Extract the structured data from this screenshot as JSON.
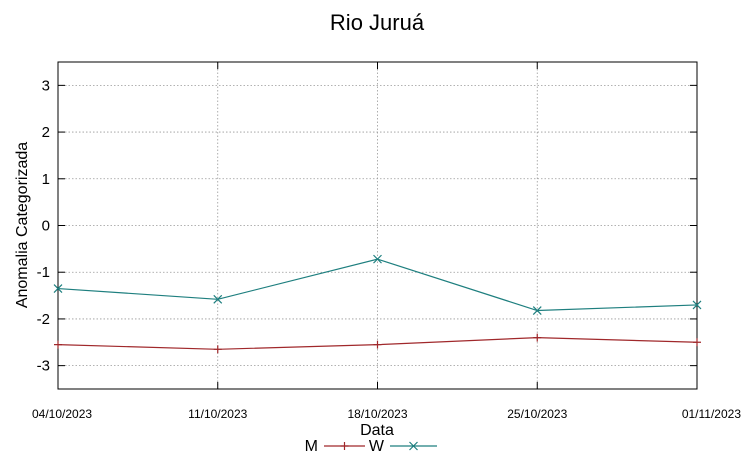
{
  "chart_data": {
    "type": "line",
    "title": "Rio Juruá",
    "xlabel": "Data",
    "ylabel": "Anomalia Categorizada",
    "x": [
      "04/10/2023",
      "11/10/2023",
      "18/10/2023",
      "25/10/2023",
      "01/11/2023"
    ],
    "yticks": [
      "3",
      "2",
      "1",
      "0",
      "-1",
      "-2",
      "-3"
    ],
    "ylim": [
      -3.5,
      3.5
    ],
    "grid": true,
    "legend_position": "bottom",
    "series": [
      {
        "name": "M",
        "color": "#a0282b",
        "marker": "plus",
        "values": [
          -2.55,
          -2.65,
          -2.55,
          -2.4,
          -2.5
        ]
      },
      {
        "name": "W",
        "color": "#1e7f7f",
        "marker": "cross",
        "values": [
          -1.35,
          -1.58,
          -0.72,
          -1.82,
          -1.7
        ]
      }
    ]
  }
}
